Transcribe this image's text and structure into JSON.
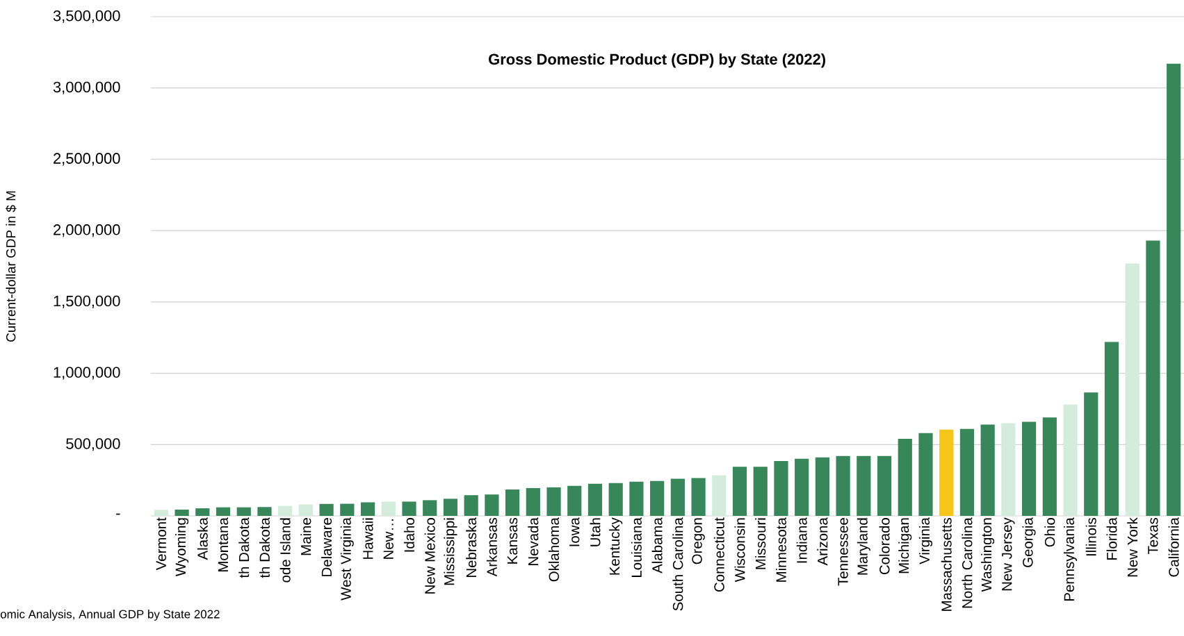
{
  "chart_data": {
    "type": "bar",
    "title": "Gross Domestic Product (GDP) by State (2022)",
    "ylabel": "Current-dollar GDP in $ M",
    "annotations": [
      "omic Analysis, Annual GDP by State 2022"
    ],
    "categories": [
      "Vermont",
      "Wyoming",
      "Alaska",
      "Montana",
      "th Dakota",
      "th Dakota",
      "ode Island",
      "Maine",
      "Delaware",
      "West Virginia",
      "Hawaii",
      "New…",
      "Idaho",
      "New Mexico",
      "Mississippi",
      "Nebraska",
      "Arkansas",
      "Kansas",
      "Nevada",
      "Oklahoma",
      "Iowa",
      "Utah",
      "Kentucky",
      "Louisiana",
      "Alabama",
      "South Carolina",
      "Oregon",
      "Connecticut",
      "Wisconsin",
      "Missouri",
      "Minnesota",
      "Indiana",
      "Arizona",
      "Tennessee",
      "Maryland",
      "Colorado",
      "Michigan",
      "Virginia",
      "Massachusetts",
      "North Carolina",
      "Washington",
      "New Jersey",
      "Georgia",
      "Ohio",
      "Pennsylvania",
      "Illinois",
      "Florida",
      "New York",
      "Texas",
      "California"
    ],
    "values": [
      42000,
      44000,
      53000,
      60000,
      60000,
      62000,
      70000,
      80000,
      84000,
      85000,
      95000,
      100000,
      100000,
      110000,
      120000,
      145000,
      150000,
      185000,
      195000,
      200000,
      210000,
      225000,
      230000,
      240000,
      245000,
      260000,
      265000,
      285000,
      345000,
      345000,
      385000,
      400000,
      410000,
      420000,
      420000,
      420000,
      540000,
      580000,
      605000,
      610000,
      640000,
      650000,
      660000,
      690000,
      780000,
      865000,
      1220000,
      1770000,
      1930000,
      3170000
    ],
    "colors": [
      "#d3ecdb",
      "#37875a",
      "#37875a",
      "#37875a",
      "#37875a",
      "#37875a",
      "#d3ecdb",
      "#d3ecdb",
      "#37875a",
      "#37875a",
      "#37875a",
      "#d3ecdb",
      "#37875a",
      "#37875a",
      "#37875a",
      "#37875a",
      "#37875a",
      "#37875a",
      "#37875a",
      "#37875a",
      "#37875a",
      "#37875a",
      "#37875a",
      "#37875a",
      "#37875a",
      "#37875a",
      "#37875a",
      "#d3ecdb",
      "#37875a",
      "#37875a",
      "#37875a",
      "#37875a",
      "#37875a",
      "#37875a",
      "#37875a",
      "#37875a",
      "#37875a",
      "#37875a",
      "#f5c518",
      "#37875a",
      "#37875a",
      "#d3ecdb",
      "#37875a",
      "#37875a",
      "#d3ecdb",
      "#37875a",
      "#37875a",
      "#d3ecdb",
      "#37875a",
      "#37875a"
    ],
    "ylim": [
      0,
      3500000
    ],
    "yticks": [
      {
        "value": 0,
        "label": "-"
      },
      {
        "value": 500000,
        "label": "500,000"
      },
      {
        "value": 1000000,
        "label": "1,000,000"
      },
      {
        "value": 1500000,
        "label": "1,500,000"
      },
      {
        "value": 2000000,
        "label": "2,000,000"
      },
      {
        "value": 2500000,
        "label": "2,500,000"
      },
      {
        "value": 3000000,
        "label": "3,000,000"
      },
      {
        "value": 3500000,
        "label": "3,500,000"
      }
    ],
    "grid": "y"
  }
}
